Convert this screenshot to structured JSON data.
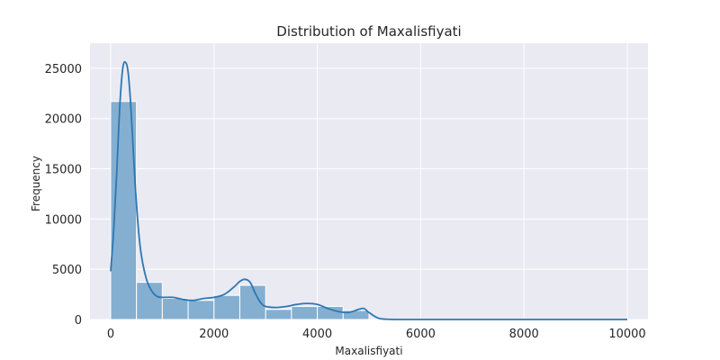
{
  "chart_data": {
    "type": "bar",
    "title": "Distribution of Maxalisfiyati",
    "xlabel": "Maxalisfiyati",
    "ylabel": "Frequency",
    "xlim": [
      -400,
      10400
    ],
    "ylim": [
      0,
      27500
    ],
    "x_ticks": [
      0,
      2000,
      4000,
      6000,
      8000,
      10000
    ],
    "y_ticks": [
      0,
      5000,
      10000,
      15000,
      20000,
      25000
    ],
    "grid": true,
    "bins": [
      {
        "start": 0,
        "end": 500,
        "value": 21700
      },
      {
        "start": 500,
        "end": 1000,
        "value": 3700
      },
      {
        "start": 1000,
        "end": 1500,
        "value": 2100
      },
      {
        "start": 1500,
        "end": 2000,
        "value": 1900
      },
      {
        "start": 2000,
        "end": 2500,
        "value": 2400
      },
      {
        "start": 2500,
        "end": 3000,
        "value": 3400
      },
      {
        "start": 3000,
        "end": 3500,
        "value": 1000
      },
      {
        "start": 3500,
        "end": 4000,
        "value": 1300
      },
      {
        "start": 4000,
        "end": 4500,
        "value": 1300
      },
      {
        "start": 4500,
        "end": 5000,
        "value": 900
      },
      {
        "start": 5000,
        "end": 5500,
        "value": 0
      },
      {
        "start": 5500,
        "end": 6000,
        "value": 0
      },
      {
        "start": 6000,
        "end": 6500,
        "value": 0
      },
      {
        "start": 6500,
        "end": 7000,
        "value": 0
      },
      {
        "start": 7000,
        "end": 7500,
        "value": 0
      },
      {
        "start": 7500,
        "end": 8000,
        "value": 0
      },
      {
        "start": 8000,
        "end": 8500,
        "value": 0
      },
      {
        "start": 8500,
        "end": 9000,
        "value": 0
      },
      {
        "start": 9000,
        "end": 9500,
        "value": 0
      },
      {
        "start": 9500,
        "end": 10000,
        "value": 0
      }
    ],
    "kde": {
      "x": [
        0,
        60,
        120,
        180,
        240,
        300,
        340,
        380,
        420,
        480,
        540,
        600,
        700,
        800,
        900,
        1000,
        1200,
        1400,
        1600,
        1800,
        2000,
        2200,
        2400,
        2500,
        2600,
        2700,
        2800,
        2900,
        3000,
        3200,
        3400,
        3600,
        3800,
        4000,
        4200,
        4400,
        4600,
        4800,
        4900,
        5000,
        5200,
        5500,
        6000,
        7000,
        8000,
        9000,
        10000
      ],
      "y": [
        4800,
        9000,
        15000,
        21500,
        25200,
        25500,
        24500,
        22000,
        18500,
        13000,
        8800,
        6200,
        3900,
        2800,
        2300,
        2200,
        2200,
        2000,
        1900,
        2100,
        2200,
        2500,
        3300,
        3800,
        4000,
        3700,
        2600,
        1700,
        1300,
        1200,
        1300,
        1500,
        1600,
        1500,
        1100,
        800,
        700,
        1000,
        1100,
        700,
        100,
        0,
        0,
        0,
        0,
        0,
        0
      ]
    },
    "colors": {
      "bar_fill": "#84afd0",
      "bar_edge": "#ffffff",
      "kde_line": "#2e77b3",
      "plot_bg": "#eaeaf2",
      "grid": "#ffffff",
      "text": "#262626"
    }
  }
}
